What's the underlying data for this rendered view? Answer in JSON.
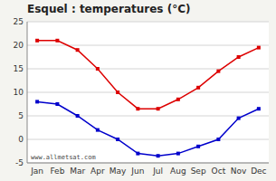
{
  "chart_data": {
    "type": "line",
    "title": "Esquel : temperatures (°C)",
    "categories": [
      "Jan",
      "Feb",
      "Mar",
      "Apr",
      "May",
      "Jun",
      "Jul",
      "Aug",
      "Sep",
      "Oct",
      "Nov",
      "Dec"
    ],
    "series": [
      {
        "color": "#dd0000",
        "marker": "square",
        "values": [
          21,
          21,
          19,
          15,
          10,
          6.5,
          6.5,
          8.5,
          11,
          14.5,
          17.5,
          19.5
        ]
      },
      {
        "color": "#0000cc",
        "marker": "square",
        "values": [
          8,
          7.5,
          5,
          2,
          0,
          -3,
          -3.5,
          -3,
          -1.5,
          0,
          4.5,
          6.5
        ]
      }
    ],
    "ylim": [
      -5,
      25
    ],
    "yticks": [
      -5,
      0,
      5,
      10,
      15,
      20,
      25
    ],
    "grid": true,
    "annotations": [
      "www.allmetsat.com"
    ]
  }
}
